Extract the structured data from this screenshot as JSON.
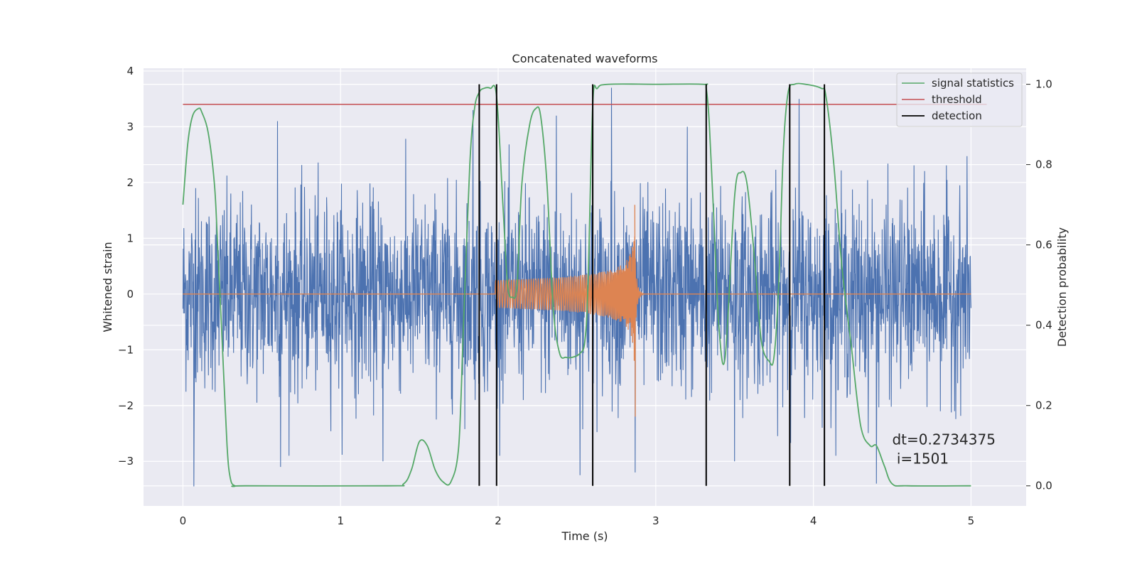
{
  "chart_data": {
    "type": "line",
    "title": "Concatenated waveforms",
    "xlabel": "Time (s)",
    "ylabel": "Whitened strain",
    "y2label": "Detection probability",
    "xlim": [
      -0.25,
      5.35
    ],
    "ylim": [
      -3.8,
      4.05
    ],
    "y2lim": [
      -0.05,
      1.04
    ],
    "xticks": [
      0,
      1,
      2,
      3,
      4,
      5
    ],
    "yticks": [
      -3,
      -2,
      -1,
      0,
      1,
      2,
      3,
      4
    ],
    "y2ticks": [
      0.0,
      0.2,
      0.4,
      0.6,
      0.8,
      1.0
    ],
    "grid": true,
    "legend_position": "top-right",
    "legend": [
      {
        "label": "signal statistics",
        "color": "#55a868"
      },
      {
        "label": "threshold",
        "color": "#c44e52"
      },
      {
        "label": "detection",
        "color": "#000000"
      }
    ],
    "series": [
      {
        "kind": "noise",
        "color": "#4c72b0",
        "x_range": [
          0,
          5
        ],
        "typical_abs": 1.0,
        "peaks": [
          {
            "x": 0.08,
            "y": 1.9
          },
          {
            "x": 0.07,
            "y": -2.0
          },
          {
            "x": 0.07,
            "y": -3.45
          },
          {
            "x": 0.6,
            "y": 3.1
          },
          {
            "x": 0.62,
            "y": -3.1
          },
          {
            "x": 1.27,
            "y": -3.0
          },
          {
            "x": 1.84,
            "y": 3.3
          },
          {
            "x": 2.37,
            "y": 3.2
          },
          {
            "x": 2.72,
            "y": 3.7
          },
          {
            "x": 2.87,
            "y": -3.2
          },
          {
            "x": 3.91,
            "y": 3.5
          },
          {
            "x": 4.4,
            "y": -3.4
          },
          {
            "x": 2.52,
            "y": -3.25
          },
          {
            "x": 3.5,
            "y": -3.0
          },
          {
            "x": 3.2,
            "y": 3.0
          }
        ]
      },
      {
        "kind": "chirp",
        "color": "#dd8452",
        "x_range": [
          0,
          5
        ],
        "chirp_start": 1.98,
        "merger_time": 2.87,
        "start_amplitude": 0.25,
        "peak_amplitude": 1.6,
        "peak_negative": -2.2
      },
      {
        "name": "signal statistics",
        "axis": "right",
        "color": "#55a868",
        "x": [
          0,
          0.03,
          0.06,
          0.1,
          0.12,
          0.16,
          0.2,
          0.22,
          0.25,
          0.28,
          0.3,
          0.33,
          0.4,
          1.3,
          1.4,
          1.45,
          1.5,
          1.55,
          1.6,
          1.65,
          1.7,
          1.75,
          1.78,
          1.82,
          1.85,
          1.88,
          1.91,
          1.95,
          1.99,
          2.03,
          2.06,
          2.09,
          2.12,
          2.15,
          2.2,
          2.24,
          2.27,
          2.31,
          2.35,
          2.39,
          2.43,
          2.47,
          2.52,
          2.55,
          2.57,
          2.6,
          2.63,
          2.7,
          3.0,
          3.3,
          3.32,
          3.34,
          3.37,
          3.4,
          3.44,
          3.5,
          3.54,
          3.58,
          3.63,
          3.67,
          3.72,
          3.75,
          3.78,
          3.81,
          3.84,
          3.88,
          3.95,
          4.05,
          4.08,
          4.13,
          4.18,
          4.24,
          4.3,
          4.36,
          4.4,
          4.45,
          4.5,
          4.6,
          5.0
        ],
        "values": [
          0.7,
          0.85,
          0.92,
          0.94,
          0.93,
          0.88,
          0.75,
          0.6,
          0.35,
          0.1,
          0.02,
          0.0,
          0.0,
          0.0,
          0.005,
          0.04,
          0.11,
          0.1,
          0.04,
          0.01,
          0.01,
          0.1,
          0.4,
          0.8,
          0.94,
          0.98,
          0.99,
          0.99,
          0.97,
          0.7,
          0.5,
          0.47,
          0.5,
          0.75,
          0.9,
          0.94,
          0.92,
          0.75,
          0.44,
          0.33,
          0.32,
          0.32,
          0.33,
          0.36,
          0.5,
          0.95,
          0.99,
          1.0,
          1.0,
          1.0,
          0.99,
          0.9,
          0.65,
          0.4,
          0.32,
          0.72,
          0.78,
          0.75,
          0.55,
          0.36,
          0.31,
          0.32,
          0.5,
          0.84,
          0.98,
          1.0,
          1.0,
          0.99,
          0.97,
          0.8,
          0.55,
          0.35,
          0.15,
          0.1,
          0.1,
          0.05,
          0.005,
          0.0,
          0.0
        ]
      },
      {
        "name": "threshold",
        "axis": "right",
        "color": "#c44e52",
        "x": [
          0,
          5.1
        ],
        "values": [
          0.95,
          0.95
        ]
      }
    ],
    "detections": [
      1.88,
      1.99,
      2.6,
      3.32,
      3.85,
      4.07
    ],
    "annotation": {
      "text": "dt=0.2734375\n i=1501",
      "x": 4.5,
      "y": -2.7
    }
  }
}
